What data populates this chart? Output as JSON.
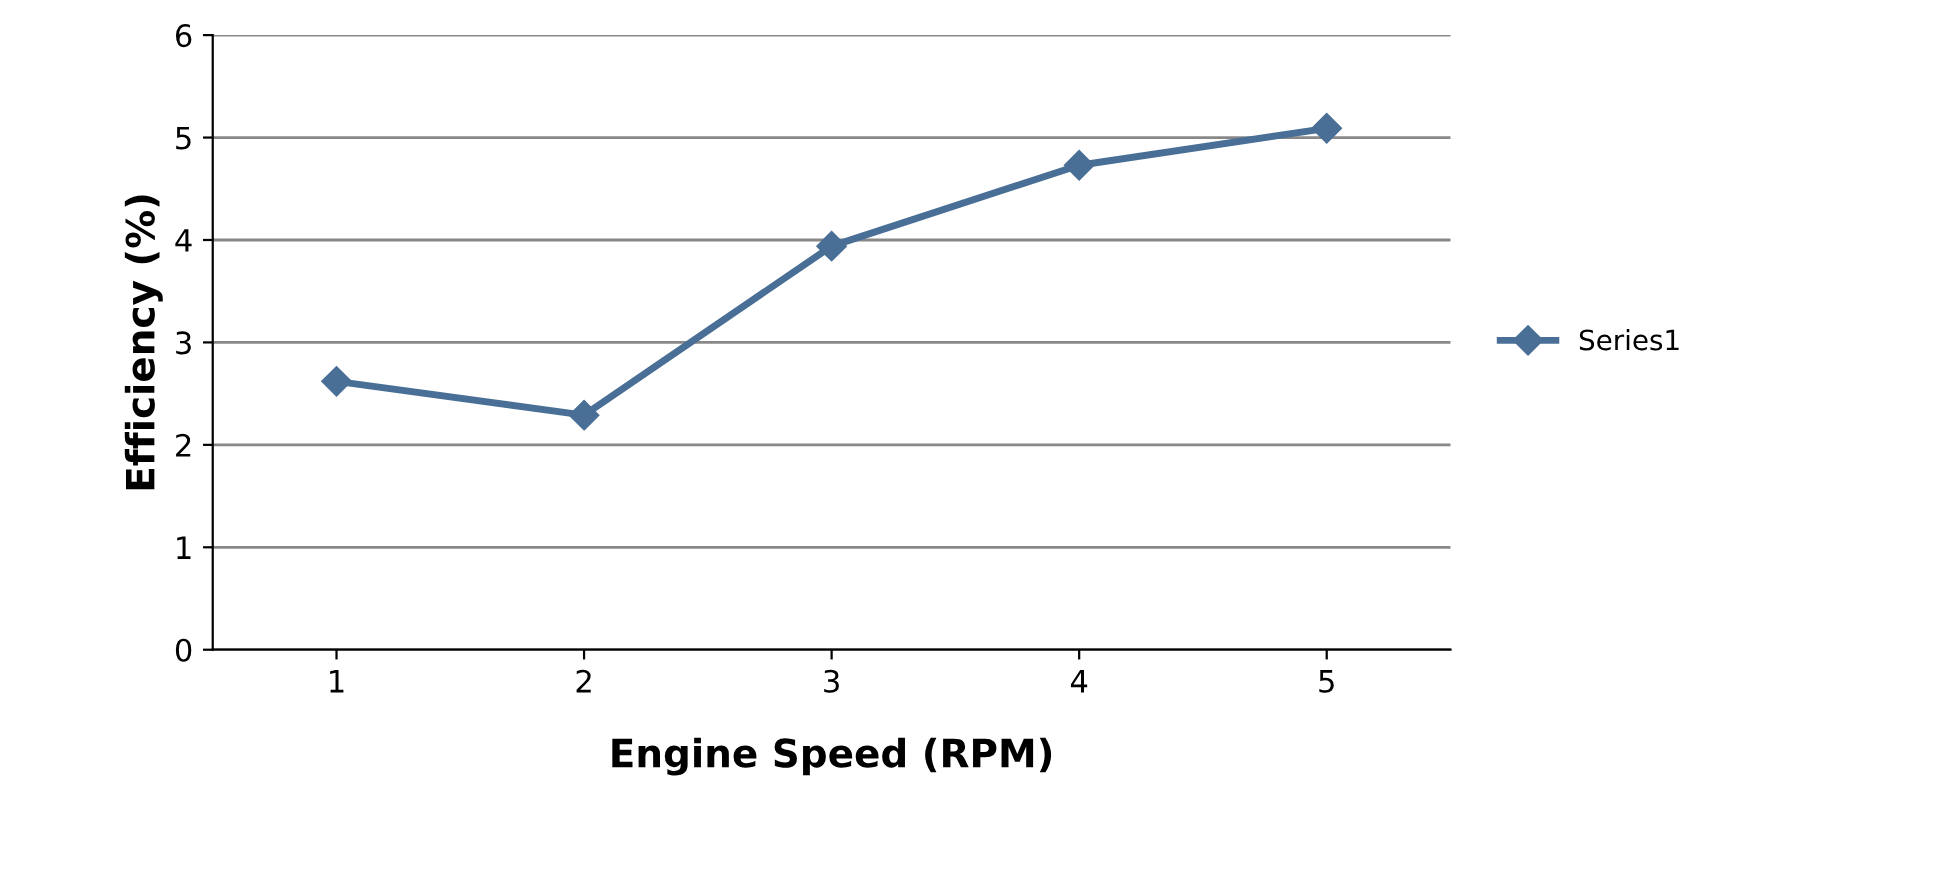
{
  "chart_data": {
    "type": "line",
    "xlabel": "Engine Speed (RPM)",
    "ylabel": "Efficiency (%)",
    "categories": [
      "1",
      "2",
      "3",
      "4",
      "5"
    ],
    "series": [
      {
        "name": "Series1",
        "color": "#4a6f96",
        "values": [
          2.62,
          2.29,
          3.94,
          4.73,
          5.09
        ]
      }
    ],
    "ylim": [
      0,
      6
    ],
    "yticks": [
      0,
      1,
      2,
      3,
      4,
      5,
      6
    ],
    "grid": "y",
    "legend": "right",
    "marker": "diamond",
    "line_style": "solid"
  }
}
